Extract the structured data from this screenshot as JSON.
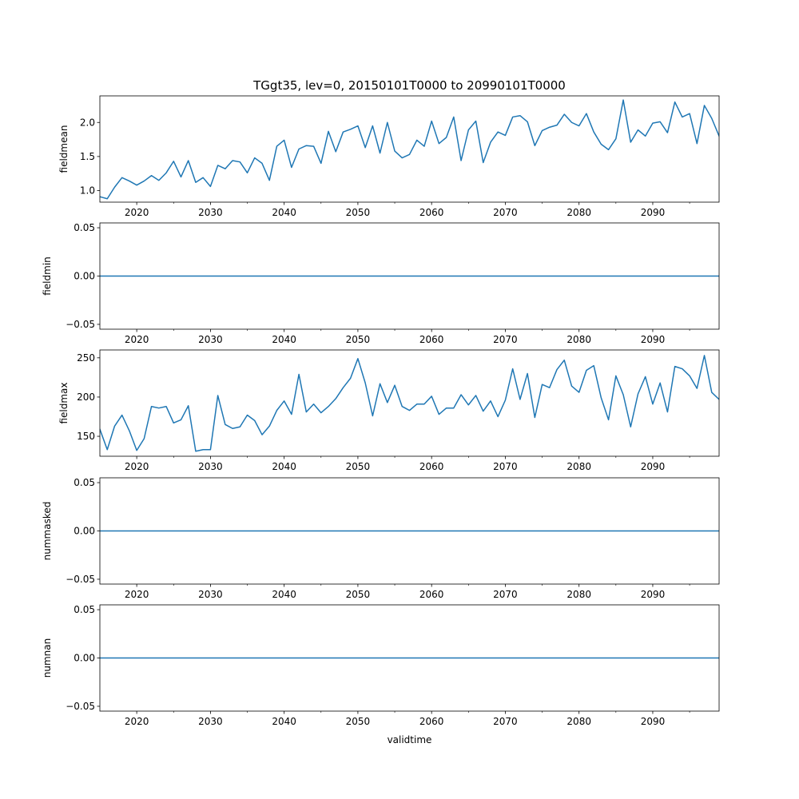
{
  "figure": {
    "title": "TGgt35, lev=0, 20150101T0000 to 20990101T0000",
    "xlabel": "validtime",
    "line_color": "#1f77b4"
  },
  "chart_data": [
    {
      "type": "line",
      "ylabel": "fieldmean",
      "xlim": [
        2015,
        2099
      ],
      "ylim": [
        0.83,
        2.39
      ],
      "yticks": [
        {
          "v": 1.0,
          "label": "1.0"
        },
        {
          "v": 1.5,
          "label": "1.5"
        },
        {
          "v": 2.0,
          "label": "2.0"
        }
      ],
      "x": [
        2015,
        2016,
        2017,
        2018,
        2019,
        2020,
        2021,
        2022,
        2023,
        2024,
        2025,
        2026,
        2027,
        2028,
        2029,
        2030,
        2031,
        2032,
        2033,
        2034,
        2035,
        2036,
        2037,
        2038,
        2039,
        2040,
        2041,
        2042,
        2043,
        2044,
        2045,
        2046,
        2047,
        2048,
        2049,
        2050,
        2051,
        2052,
        2053,
        2054,
        2055,
        2056,
        2057,
        2058,
        2059,
        2060,
        2061,
        2062,
        2063,
        2064,
        2065,
        2066,
        2067,
        2068,
        2069,
        2070,
        2071,
        2072,
        2073,
        2074,
        2075,
        2076,
        2077,
        2078,
        2079,
        2080,
        2081,
        2082,
        2083,
        2084,
        2085,
        2086,
        2087,
        2088,
        2089,
        2090,
        2091,
        2092,
        2093,
        2094,
        2095,
        2096,
        2097,
        2098,
        2099
      ],
      "values": [
        0.91,
        0.88,
        1.05,
        1.19,
        1.14,
        1.08,
        1.14,
        1.22,
        1.15,
        1.26,
        1.43,
        1.2,
        1.44,
        1.12,
        1.19,
        1.06,
        1.37,
        1.32,
        1.44,
        1.42,
        1.26,
        1.48,
        1.4,
        1.15,
        1.65,
        1.74,
        1.34,
        1.61,
        1.66,
        1.65,
        1.4,
        1.87,
        1.57,
        1.86,
        1.9,
        1.95,
        1.63,
        1.95,
        1.55,
        2.0,
        1.58,
        1.48,
        1.53,
        1.74,
        1.65,
        2.02,
        1.69,
        1.78,
        2.08,
        1.44,
        1.89,
        2.02,
        1.41,
        1.71,
        1.86,
        1.81,
        2.08,
        2.1,
        2.01,
        1.66,
        1.88,
        1.93,
        1.96,
        2.12,
        2.0,
        1.95,
        2.13,
        1.86,
        1.68,
        1.6,
        1.76,
        2.33,
        1.71,
        1.89,
        1.8,
        1.99,
        2.01,
        1.85,
        2.3,
        2.08,
        2.13,
        1.69,
        2.25,
        2.06,
        1.8
      ]
    },
    {
      "type": "line",
      "ylabel": "fieldmin",
      "xlim": [
        2015,
        2099
      ],
      "ylim": [
        -0.055,
        0.055
      ],
      "yticks": [
        {
          "v": -0.05,
          "label": "−0.05"
        },
        {
          "v": 0.0,
          "label": "0.00"
        },
        {
          "v": 0.05,
          "label": "0.05"
        }
      ],
      "x": [
        2015,
        2099
      ],
      "values": [
        0,
        0
      ]
    },
    {
      "type": "line",
      "ylabel": "fieldmax",
      "xlim": [
        2015,
        2099
      ],
      "ylim": [
        124.6,
        260.0
      ],
      "yticks": [
        {
          "v": 150,
          "label": "150"
        },
        {
          "v": 200,
          "label": "200"
        },
        {
          "v": 250,
          "label": "250"
        }
      ],
      "x": [
        2015,
        2016,
        2017,
        2018,
        2019,
        2020,
        2021,
        2022,
        2023,
        2024,
        2025,
        2026,
        2027,
        2028,
        2029,
        2030,
        2031,
        2032,
        2033,
        2034,
        2035,
        2036,
        2037,
        2038,
        2039,
        2040,
        2041,
        2042,
        2043,
        2044,
        2045,
        2046,
        2047,
        2048,
        2049,
        2050,
        2051,
        2052,
        2053,
        2054,
        2055,
        2056,
        2057,
        2058,
        2059,
        2060,
        2061,
        2062,
        2063,
        2064,
        2065,
        2066,
        2067,
        2068,
        2069,
        2070,
        2071,
        2072,
        2073,
        2074,
        2075,
        2076,
        2077,
        2078,
        2079,
        2080,
        2081,
        2082,
        2083,
        2084,
        2085,
        2086,
        2087,
        2088,
        2089,
        2090,
        2091,
        2092,
        2093,
        2094,
        2095,
        2096,
        2097,
        2098,
        2099
      ],
      "values": [
        159,
        133,
        163,
        177,
        157,
        132,
        147,
        188,
        186,
        188,
        167,
        171,
        189,
        131,
        133,
        133,
        202,
        165,
        160,
        162,
        177,
        170,
        152,
        163,
        183,
        195,
        178,
        229,
        181,
        191,
        180,
        188,
        198,
        212,
        224,
        249,
        218,
        176,
        217,
        193,
        215,
        188,
        183,
        191,
        191,
        201,
        178,
        186,
        186,
        203,
        190,
        202,
        182,
        195,
        175,
        196,
        236,
        197,
        230,
        174,
        216,
        212,
        235,
        247,
        214,
        206,
        234,
        240,
        199,
        171,
        227,
        203,
        162,
        204,
        226,
        191,
        218,
        181,
        239,
        236,
        227,
        211,
        253,
        206,
        197
      ]
    },
    {
      "type": "line",
      "ylabel": "nummasked",
      "xlim": [
        2015,
        2099
      ],
      "ylim": [
        -0.055,
        0.055
      ],
      "yticks": [
        {
          "v": -0.05,
          "label": "−0.05"
        },
        {
          "v": 0.0,
          "label": "0.00"
        },
        {
          "v": 0.05,
          "label": "0.05"
        }
      ],
      "x": [
        2015,
        2099
      ],
      "values": [
        0,
        0
      ]
    },
    {
      "type": "line",
      "ylabel": "numnan",
      "xlim": [
        2015,
        2099
      ],
      "ylim": [
        -0.055,
        0.055
      ],
      "yticks": [
        {
          "v": -0.05,
          "label": "−0.05"
        },
        {
          "v": 0.0,
          "label": "0.00"
        },
        {
          "v": 0.05,
          "label": "0.05"
        }
      ],
      "x": [
        2015,
        2099
      ],
      "values": [
        0,
        0
      ]
    }
  ],
  "xticks": {
    "major": [
      {
        "v": 2020,
        "label": "2020"
      },
      {
        "v": 2030,
        "label": "2030"
      },
      {
        "v": 2040,
        "label": "2040"
      },
      {
        "v": 2050,
        "label": "2050"
      },
      {
        "v": 2060,
        "label": "2060"
      },
      {
        "v": 2070,
        "label": "2070"
      },
      {
        "v": 2080,
        "label": "2080"
      },
      {
        "v": 2090,
        "label": "2090"
      }
    ],
    "minor": [
      2025,
      2035,
      2045,
      2055,
      2065,
      2075,
      2085,
      2095
    ]
  }
}
